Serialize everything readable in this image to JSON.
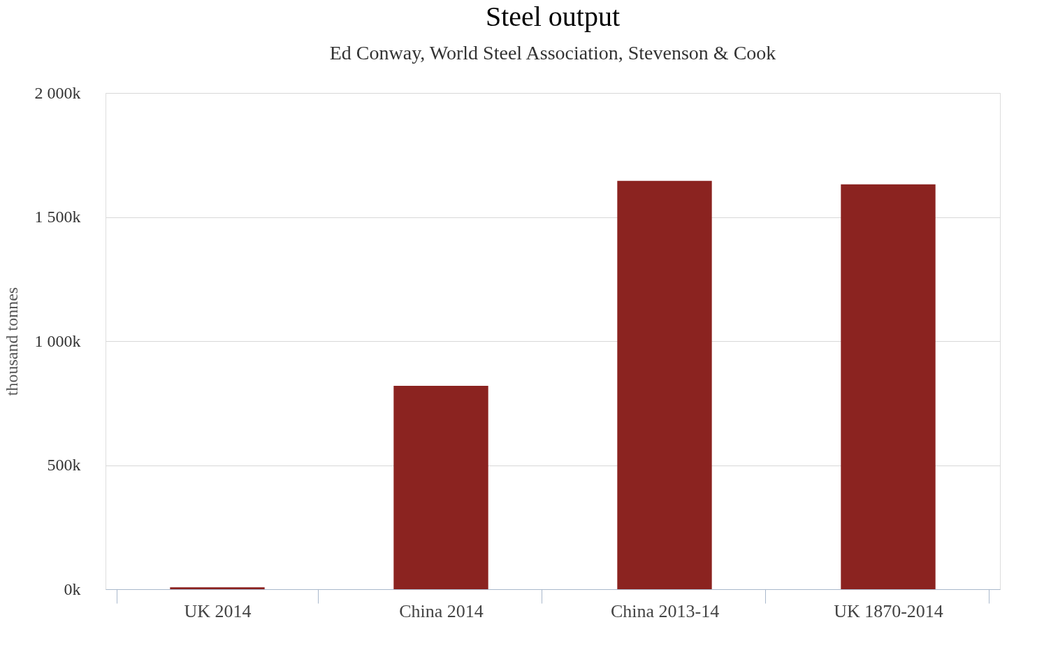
{
  "chart_data": {
    "type": "bar",
    "title": "Steel output",
    "subtitle": "Ed Conway, World Steel Association, Stevenson & Cook",
    "ylabel": "thousand tonnes",
    "categories": [
      "UK 2014",
      "China 2014",
      "China 2013-14",
      "UK 1870-2014"
    ],
    "values": [
      8,
      820,
      1646,
      1632
    ],
    "color": "#8b2320",
    "ylim": [
      0,
      2000
    ],
    "yticks": [
      {
        "value": 0,
        "label": "0k"
      },
      {
        "value": 500,
        "label": "500k"
      },
      {
        "value": 1000,
        "label": "1 000k"
      },
      {
        "value": 1500,
        "label": "1 500k"
      },
      {
        "value": 2000,
        "label": "2 000k"
      }
    ],
    "grid": "y"
  }
}
